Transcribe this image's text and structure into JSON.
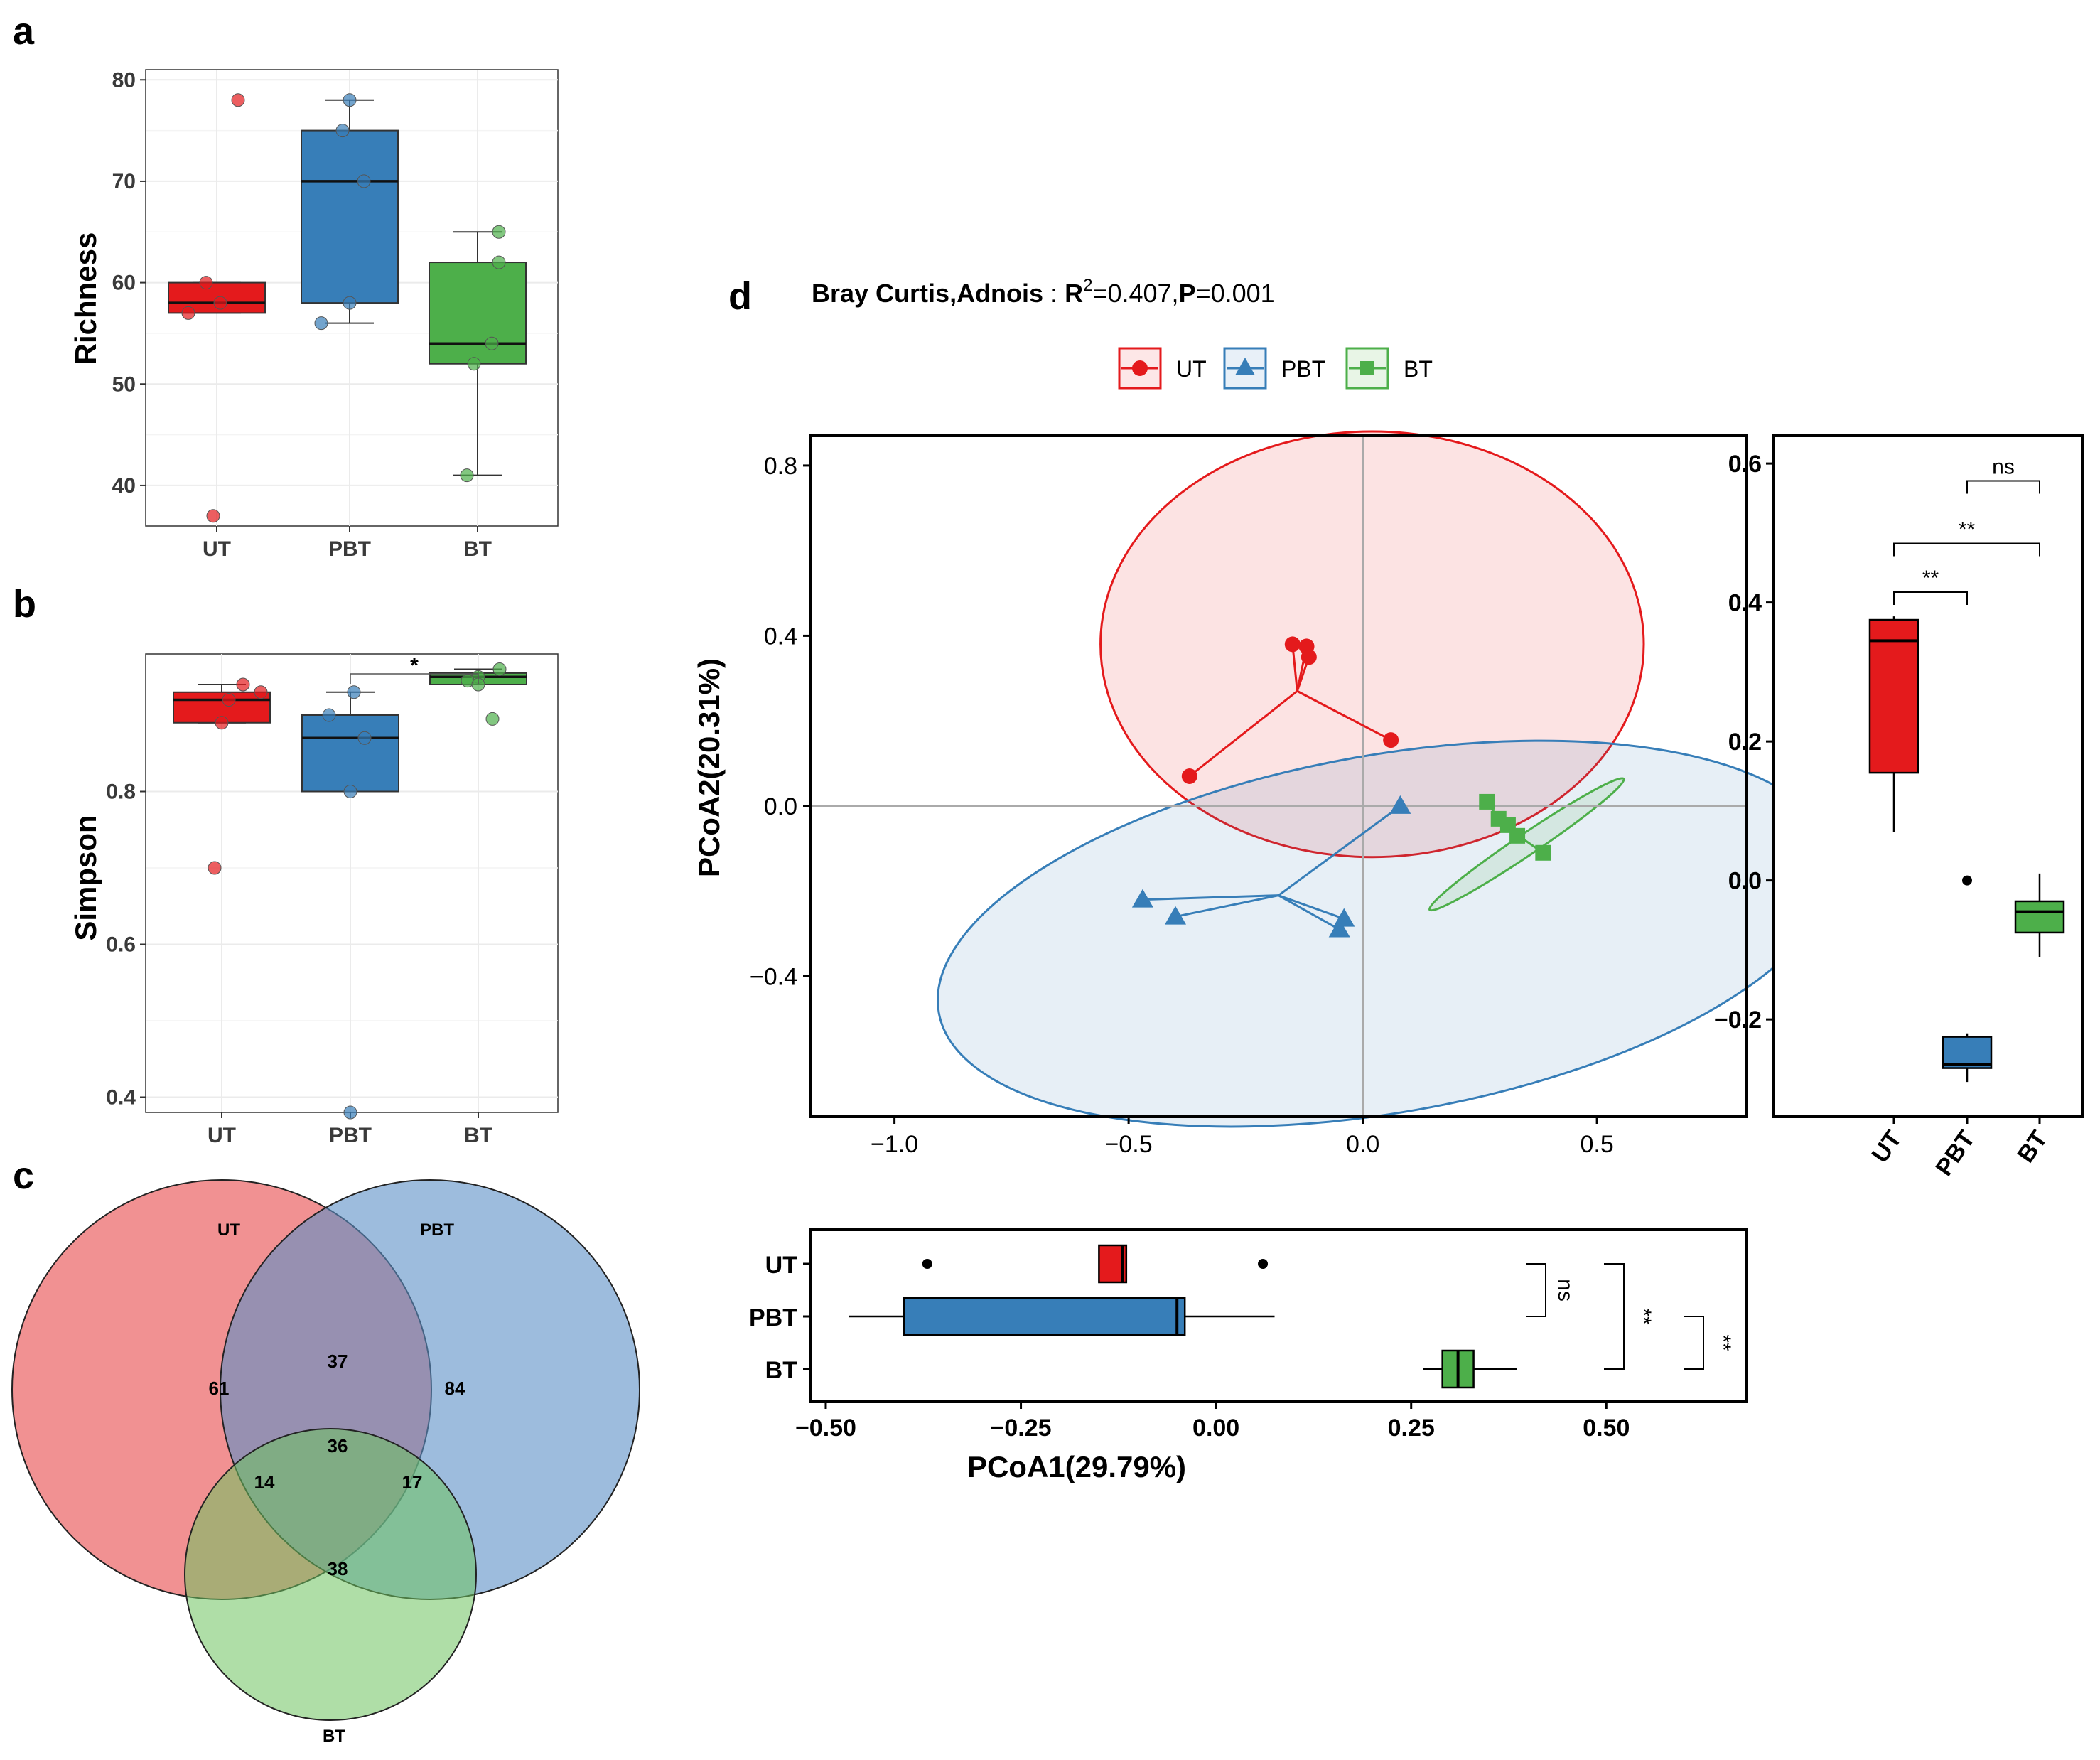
{
  "panels": {
    "a": "a",
    "b": "b",
    "c": "c",
    "d": "d"
  },
  "colors": {
    "UT": "#e41a1c",
    "PBT": "#377eb8",
    "BT": "#4daf4a"
  },
  "chart_data": [
    {
      "id": "richness",
      "type": "box",
      "panel": "a",
      "ylabel": "Richness",
      "categories": [
        "UT",
        "PBT",
        "BT"
      ],
      "ylim": [
        36,
        81
      ],
      "yticks": [
        40,
        50,
        60,
        70,
        80
      ],
      "boxes": [
        {
          "name": "UT",
          "min": 57,
          "q1": 57,
          "median": 58,
          "q3": 60,
          "max": 60
        },
        {
          "name": "PBT",
          "min": 56,
          "q1": 58,
          "median": 70,
          "q3": 75,
          "max": 78
        },
        {
          "name": "BT",
          "min": 41,
          "q1": 52,
          "median": 54,
          "q3": 62,
          "max": 65
        }
      ],
      "points": {
        "UT": [
          78,
          60,
          58,
          57,
          37
        ],
        "PBT": [
          78,
          75,
          70,
          58,
          56
        ],
        "BT": [
          65,
          62,
          54,
          52,
          41
        ]
      },
      "significance": []
    },
    {
      "id": "simpson",
      "type": "box",
      "panel": "b",
      "ylabel": "Simpson",
      "categories": [
        "UT",
        "PBT",
        "BT"
      ],
      "ylim": [
        0.38,
        0.98
      ],
      "yticks": [
        0.4,
        0.6,
        0.8
      ],
      "boxes": [
        {
          "name": "UT",
          "min": 0.89,
          "q1": 0.89,
          "median": 0.92,
          "q3": 0.93,
          "max": 0.94
        },
        {
          "name": "PBT",
          "min": 0.8,
          "q1": 0.8,
          "median": 0.87,
          "q3": 0.9,
          "max": 0.93
        },
        {
          "name": "BT",
          "min": 0.94,
          "q1": 0.94,
          "median": 0.95,
          "q3": 0.955,
          "max": 0.96
        }
      ],
      "points": {
        "UT": [
          0.94,
          0.93,
          0.92,
          0.89,
          0.7
        ],
        "PBT": [
          0.93,
          0.9,
          0.87,
          0.8,
          0.38
        ],
        "BT": [
          0.96,
          0.95,
          0.945,
          0.94,
          0.895
        ]
      },
      "significance": [
        {
          "from": "PBT",
          "to": "BT",
          "label": "*"
        }
      ]
    },
    {
      "id": "venn",
      "type": "venn",
      "panel": "c",
      "sets": [
        "UT",
        "PBT",
        "BT"
      ],
      "regions": {
        "UT": "61",
        "PBT": "84",
        "BT": "38",
        "UT_PBT": "37",
        "UT_BT": "14",
        "PBT_BT": "17",
        "UT_PBT_BT": "36"
      }
    },
    {
      "id": "pcoa",
      "type": "scatter",
      "panel": "d",
      "title_bold": "Bray Curtis,Adnois",
      "title_colon": " : ",
      "title_r": "R",
      "title_sup": "2",
      "title_r_value": "=0.407,",
      "title_p": "P",
      "title_p_value": "=0.001",
      "legend": [
        "UT",
        "PBT",
        "BT"
      ],
      "xlabel": "PCoA1(29.79%)",
      "ylabel": "PCoA2(20.31%)",
      "xlim": [
        -1.18,
        0.82
      ],
      "ylim": [
        -0.73,
        0.87
      ],
      "xticks": [
        -1.0,
        -0.5,
        0.0,
        0.5
      ],
      "yticks": [
        -0.4,
        0.0,
        0.4,
        0.8
      ],
      "xtick_labels": [
        "−1.0",
        "−0.5",
        "0.0",
        "0.5"
      ],
      "ytick_labels": [
        "−0.4",
        "0.0",
        "0.4",
        "0.8"
      ],
      "series": [
        {
          "name": "UT",
          "shape": "circle",
          "centroid": [
            -0.14,
            0.27
          ],
          "points": [
            [
              -0.15,
              0.38
            ],
            [
              -0.12,
              0.375
            ],
            [
              -0.115,
              0.35
            ],
            [
              0.06,
              0.155
            ],
            [
              -0.37,
              0.07
            ]
          ],
          "ellipse": {
            "cx": 0.02,
            "cy": 0.38,
            "rx": 0.58,
            "ry": 0.5,
            "angle": 0
          }
        },
        {
          "name": "PBT",
          "shape": "triangle",
          "centroid": [
            -0.18,
            -0.21
          ],
          "points": [
            [
              0.08,
              -0.0
            ],
            [
              -0.47,
              -0.22
            ],
            [
              -0.4,
              -0.26
            ],
            [
              -0.04,
              -0.265
            ],
            [
              -0.05,
              -0.29
            ]
          ],
          "ellipse": {
            "cx": 0.05,
            "cy": -0.3,
            "rx": 0.97,
            "ry": 0.42,
            "angle": 10
          }
        },
        {
          "name": "BT",
          "shape": "square",
          "centroid": [
            0.3,
            -0.045
          ],
          "points": [
            [
              0.265,
              0.01
            ],
            [
              0.29,
              -0.03
            ],
            [
              0.31,
              -0.045
            ],
            [
              0.33,
              -0.07
            ],
            [
              0.385,
              -0.11
            ]
          ],
          "ellipse": {
            "cx": 0.35,
            "cy": -0.09,
            "rx": 0.25,
            "ry": 0.025,
            "angle": 34
          }
        }
      ]
    },
    {
      "id": "pcoa2-box",
      "type": "box",
      "panel": "d-right",
      "categories": [
        "UT",
        "PBT",
        "BT"
      ],
      "ylim": [
        -0.34,
        0.64
      ],
      "yticks": [
        -0.2,
        0.0,
        0.2,
        0.4,
        0.6
      ],
      "ytick_labels": [
        "−0.2",
        "0.0",
        "0.2",
        "0.4",
        "0.6"
      ],
      "boxes": [
        {
          "name": "UT",
          "min": 0.07,
          "q1": 0.155,
          "median": 0.345,
          "q3": 0.375,
          "max": 0.38
        },
        {
          "name": "PBT",
          "min": -0.29,
          "q1": -0.27,
          "median": -0.265,
          "q3": -0.225,
          "max": -0.22
        },
        {
          "name": "BT",
          "min": -0.11,
          "q1": -0.075,
          "median": -0.045,
          "q3": -0.03,
          "max": 0.01
        }
      ],
      "outliers": {
        "UT": [],
        "PBT": [
          0.0
        ],
        "BT": []
      },
      "significance": [
        {
          "from": "UT",
          "to": "PBT",
          "label": "**"
        },
        {
          "from": "UT",
          "to": "BT",
          "label": "**"
        },
        {
          "from": "PBT",
          "to": "BT",
          "label": "ns"
        }
      ]
    },
    {
      "id": "pcoa1-box",
      "type": "box",
      "panel": "d-bottom",
      "orientation": "horizontal",
      "categories": [
        "UT",
        "PBT",
        "BT"
      ],
      "xlim": [
        -0.52,
        0.68
      ],
      "xticks": [
        -0.5,
        -0.25,
        0.0,
        0.25,
        0.5
      ],
      "xtick_labels": [
        "−0.50",
        "−0.25",
        "0.00",
        "0.25",
        "0.50"
      ],
      "boxes": [
        {
          "name": "UT",
          "min": -0.15,
          "q1": -0.15,
          "median": -0.12,
          "q3": -0.115,
          "max": -0.115
        },
        {
          "name": "PBT",
          "min": -0.47,
          "q1": -0.4,
          "median": -0.05,
          "q3": -0.04,
          "max": 0.075
        },
        {
          "name": "BT",
          "min": 0.265,
          "q1": 0.29,
          "median": 0.31,
          "q3": 0.33,
          "max": 0.385
        }
      ],
      "outliers": {
        "UT": [
          -0.37,
          0.06
        ],
        "PBT": [],
        "BT": []
      },
      "significance": [
        {
          "from": "UT",
          "to": "PBT",
          "label": "ns"
        },
        {
          "from": "UT",
          "to": "BT",
          "label": "**"
        },
        {
          "from": "PBT",
          "to": "BT",
          "label": "**"
        }
      ]
    }
  ]
}
